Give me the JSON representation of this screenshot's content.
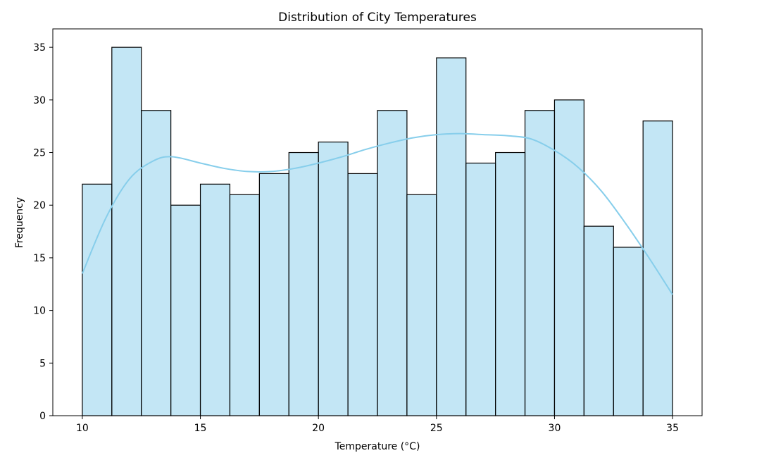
{
  "chart_data": {
    "type": "histogram",
    "title": "Distribution of City Temperatures",
    "xlabel": "Temperature (°C)",
    "ylabel": "Frequency",
    "xlim": [
      8.75,
      36.25
    ],
    "ylim": [
      0,
      36.75
    ],
    "xticks": [
      10,
      15,
      20,
      25,
      30,
      35
    ],
    "yticks": [
      0,
      5,
      10,
      15,
      20,
      25,
      30,
      35
    ],
    "bin_start": 10,
    "bin_end": 35,
    "bin_count": 20,
    "values": [
      22,
      35,
      29,
      20,
      22,
      21,
      23,
      25,
      26,
      23,
      29,
      21,
      34,
      24,
      25,
      29,
      30,
      18,
      16,
      28
    ],
    "bar_color": "#87ceeb",
    "bar_opacity": 0.5,
    "edge_color": "#000000",
    "kde": {
      "color": "#87ceeb",
      "x": [
        10,
        11,
        12,
        13,
        13.8,
        15,
        16,
        17,
        18,
        19,
        20,
        21,
        22,
        23,
        24,
        25,
        26,
        27,
        28,
        29,
        30,
        31,
        32,
        33,
        34,
        35
      ],
      "y": [
        13.5,
        18.8,
        22.5,
        24.2,
        24.6,
        24.0,
        23.5,
        23.2,
        23.2,
        23.5,
        24.0,
        24.6,
        25.3,
        25.9,
        26.4,
        26.7,
        26.8,
        26.7,
        26.6,
        26.3,
        25.2,
        23.6,
        21.3,
        18.3,
        15.0,
        11.5
      ]
    }
  }
}
